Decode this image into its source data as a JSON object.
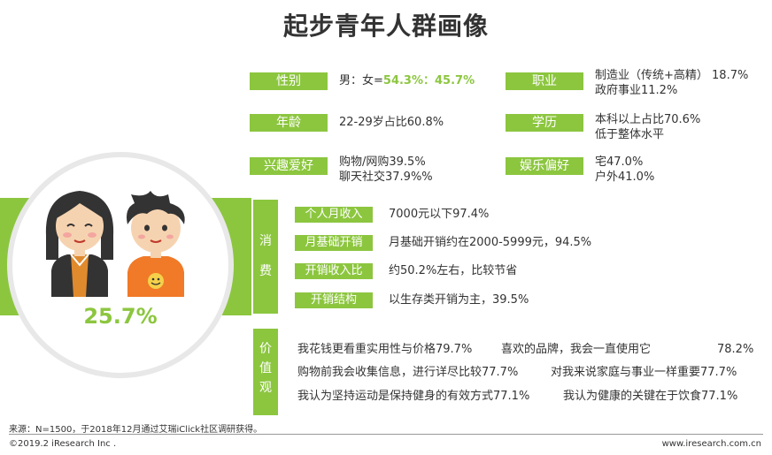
{
  "title": "起步青年人群画像",
  "profile": {
    "gender": {
      "label": "性别",
      "prefix": "男：女=",
      "value": "54.3%：45.7%"
    },
    "occupation": {
      "label": "职业",
      "line1": "制造业（传统+高精） 18.7%",
      "line2": "政府事业11.2%"
    },
    "age": {
      "label": "年龄",
      "value": "22-29岁占比60.8%"
    },
    "education": {
      "label": "学历",
      "line1": "本科以上占比70.6%",
      "line2": "低于整体水平"
    },
    "interests": {
      "label": "兴趣爱好",
      "line1": "购物/网购39.5%",
      "line2": "聊天社交37.9%%"
    },
    "entertainment": {
      "label": "娱乐偏好",
      "line1": "宅47.0%",
      "line2": "户外41.0%"
    }
  },
  "figure_percent": "25.7%",
  "consumption": {
    "label_chars": [
      "消",
      "费"
    ],
    "items": [
      {
        "label": "个人月收入",
        "value": "7000元以下97.4%"
      },
      {
        "label": "月基础开销",
        "value": "月基础开销约在2000-5999元，94.5%"
      },
      {
        "label": "开销收入比",
        "value": "约50.2%左右，比较节省"
      },
      {
        "label": "开销结构",
        "value": "以生存类开销为主，39.5%"
      }
    ]
  },
  "values": {
    "label_chars": [
      "价",
      "值",
      "观"
    ],
    "rows": [
      {
        "left": "我花钱更看重实用性与价格79.7%",
        "right": "喜欢的品牌，我会一直使用它",
        "right_value": "78.2%"
      },
      {
        "left": "购物前我会收集信息，进行详尽比较77.7%",
        "right": "对我来说家庭与事业一样重要77.7%",
        "right_value": ""
      },
      {
        "left": "我认为坚持运动是保持健身的有效方式77.1%",
        "right": "我认为健康的关键在于饮食77.1%",
        "right_value": ""
      }
    ]
  },
  "source": "来源：N=1500，于2018年12月通过艾瑞iClick社区调研获得。",
  "copyright": "©2019.2 iResearch Inc .",
  "website": "www.iresearch.com.cn",
  "colors": {
    "accent": "#8cc63f",
    "text": "#333333"
  }
}
